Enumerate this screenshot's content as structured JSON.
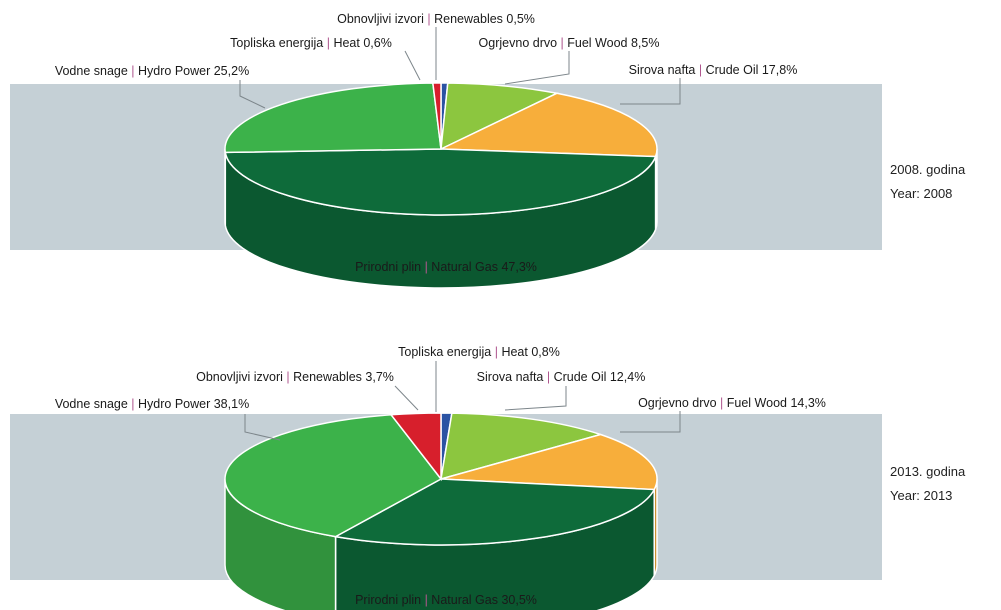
{
  "colors": {
    "band": "#c5d0d6",
    "separator": "#b0578f",
    "leader": "#7d868b"
  },
  "chart_data": [
    {
      "type": "pie",
      "year_label_hr": "2008. godina",
      "year_label_en": "Year: 2008",
      "slices": [
        {
          "name_hr": "Obnovljivi izvori",
          "name_en": "Renewables",
          "value": 0.5,
          "value_label": "0,5%",
          "color": "#2b53a3"
        },
        {
          "name_hr": "Ogrjevno drvo",
          "name_en": "Fuel Wood",
          "value": 8.5,
          "value_label": "8,5%",
          "color": "#8cc63f"
        },
        {
          "name_hr": "Sirova nafta",
          "name_en": "Crude Oil",
          "value": 17.8,
          "value_label": "17,8%",
          "color": "#f7ae3b"
        },
        {
          "name_hr": "Prirodni plin",
          "name_en": "Natural Gas",
          "value": 47.3,
          "value_label": "47,3%",
          "color": "#0e6b3a"
        },
        {
          "name_hr": "Vodne snage",
          "name_en": "Hydro Power",
          "value": 25.2,
          "value_label": "25,2%",
          "color": "#3cb24a"
        },
        {
          "name_hr": "Topliska energija",
          "name_en": "Heat",
          "value": 0.6,
          "value_label": "0,6%",
          "color": "#d71f2c"
        }
      ]
    },
    {
      "type": "pie",
      "year_label_hr": "2013. godina",
      "year_label_en": "Year: 2013",
      "slices": [
        {
          "name_hr": "Topliska energija",
          "name_en": "Heat",
          "value": 0.8,
          "value_label": "0,8%",
          "color": "#2b53a3"
        },
        {
          "name_hr": "Sirova nafta",
          "name_en": "Crude Oil",
          "value": 12.4,
          "value_label": "12,4%",
          "color": "#8cc63f"
        },
        {
          "name_hr": "Ogrjevno drvo",
          "name_en": "Fuel Wood",
          "value": 14.3,
          "value_label": "14,3%",
          "color": "#f7ae3b"
        },
        {
          "name_hr": "Prirodni plin",
          "name_en": "Natural Gas",
          "value": 30.5,
          "value_label": "30,5%",
          "color": "#0e6b3a"
        },
        {
          "name_hr": "Vodne snage",
          "name_en": "Hydro Power",
          "value": 38.1,
          "value_label": "38,1%",
          "color": "#3cb24a"
        },
        {
          "name_hr": "Obnovljivi izvori",
          "name_en": "Renewables",
          "value": 3.7,
          "value_label": "3,7%",
          "color": "#d71f2c"
        }
      ]
    }
  ]
}
